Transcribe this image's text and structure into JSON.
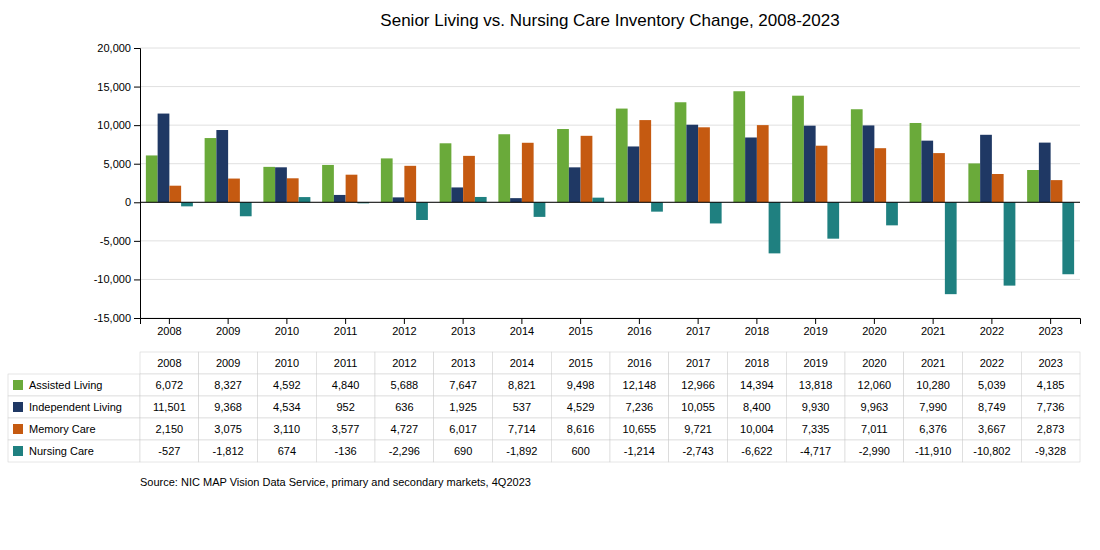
{
  "chart_data": {
    "type": "bar",
    "title": "Senior Living vs. Nursing Care Inventory Change, 2008-2023",
    "categories": [
      "2008",
      "2009",
      "2010",
      "2011",
      "2012",
      "2013",
      "2014",
      "2015",
      "2016",
      "2017",
      "2018",
      "2019",
      "2020",
      "2021",
      "2022",
      "2023"
    ],
    "series": [
      {
        "name": "Assisted Living",
        "color": "#6aaa3a",
        "values": [
          6072,
          8327,
          4592,
          4840,
          5688,
          7647,
          8821,
          9498,
          12148,
          12966,
          14394,
          13818,
          12060,
          10280,
          5039,
          4185
        ],
        "value_labels": [
          "6,072",
          "8,327",
          "4,592",
          "4,840",
          "5,688",
          "7,647",
          "8,821",
          "9,498",
          "12,148",
          "12,966",
          "14,394",
          "13,818",
          "12,060",
          "10,280",
          "5,039",
          "4,185"
        ]
      },
      {
        "name": "Independent Living",
        "color": "#1f3864",
        "values": [
          11501,
          9368,
          4534,
          952,
          636,
          1925,
          537,
          4529,
          7236,
          10055,
          8400,
          9930,
          9963,
          7990,
          8749,
          7736
        ],
        "value_labels": [
          "11,501",
          "9,368",
          "4,534",
          "952",
          "636",
          "1,925",
          "537",
          "4,529",
          "7,236",
          "10,055",
          "8,400",
          "9,930",
          "9,963",
          "7,990",
          "8,749",
          "7,736"
        ]
      },
      {
        "name": "Memory Care",
        "color": "#c55a11",
        "values": [
          2150,
          3075,
          3110,
          3577,
          4727,
          6017,
          7714,
          8616,
          10655,
          9721,
          10004,
          7335,
          7011,
          6376,
          3667,
          2873
        ],
        "value_labels": [
          "2,150",
          "3,075",
          "3,110",
          "3,577",
          "4,727",
          "6,017",
          "7,714",
          "8,616",
          "10,655",
          "9,721",
          "10,004",
          "7,335",
          "7,011",
          "6,376",
          "3,667",
          "2,873"
        ]
      },
      {
        "name": "Nursing Care",
        "color": "#1f8080",
        "values": [
          -527,
          -1812,
          674,
          -136,
          -2296,
          690,
          -1892,
          600,
          -1214,
          -2743,
          -6622,
          -4717,
          -2990,
          -11910,
          -10802,
          -9328
        ],
        "value_labels": [
          "-527",
          "-1,812",
          "674",
          "-136",
          "-2,296",
          "690",
          "-1,892",
          "600",
          "-1,214",
          "-2,743",
          "-6,622",
          "-4,717",
          "-2,990",
          "-11,910",
          "-10,802",
          "-9,328"
        ]
      }
    ],
    "ylim": [
      -15000,
      20000
    ],
    "yticks": [
      {
        "value": -15000,
        "label": "-15,000"
      },
      {
        "value": -10000,
        "label": "-10,000"
      },
      {
        "value": -5000,
        "label": "-5,000"
      },
      0,
      {
        "value": 5000,
        "label": "5,000"
      },
      {
        "value": 10000,
        "label": "10,000"
      },
      {
        "value": 15000,
        "label": "15,000"
      },
      {
        "value": 20000,
        "label": "20,000"
      }
    ],
    "grid": true,
    "annotations": [
      "Source: NIC MAP Vision Data Service, primary and secondary markets, 4Q2023"
    ]
  }
}
